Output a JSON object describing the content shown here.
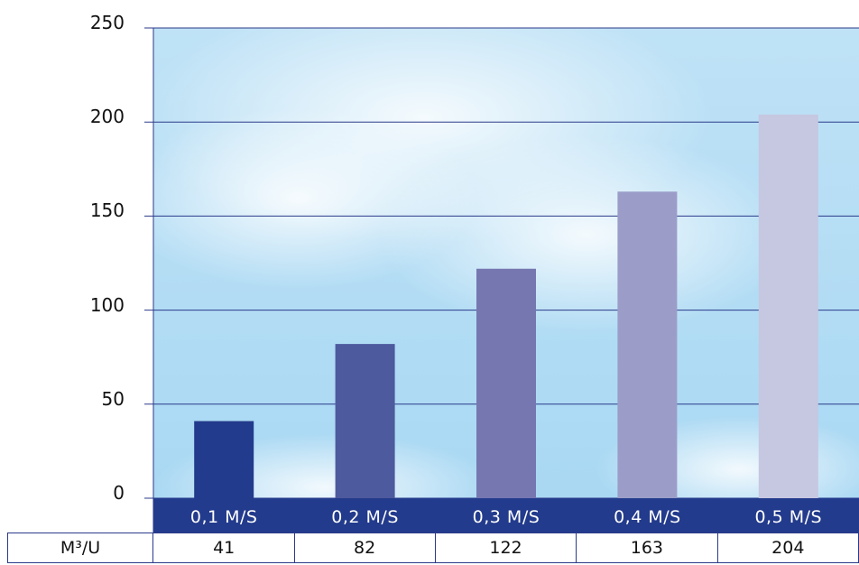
{
  "chart_data": {
    "type": "bar",
    "categories": [
      "0,1 M/S",
      "0,2 M/S",
      "0,3 M/S",
      "0,4 M/S",
      "0,5 M/S"
    ],
    "values": [
      41,
      82,
      122,
      163,
      204
    ],
    "y_ticks": [
      "0",
      "50",
      "100",
      "150",
      "200",
      "250"
    ],
    "ylim": [
      0,
      250
    ],
    "grid": true,
    "bar_colors": [
      "#233b8c",
      "#4d5a9e",
      "#7677b0",
      "#9b9dc8",
      "#c6c7e0"
    ],
    "table": {
      "row_label": "M³/U",
      "cells": [
        "41",
        "82",
        "122",
        "163",
        "204"
      ]
    }
  }
}
